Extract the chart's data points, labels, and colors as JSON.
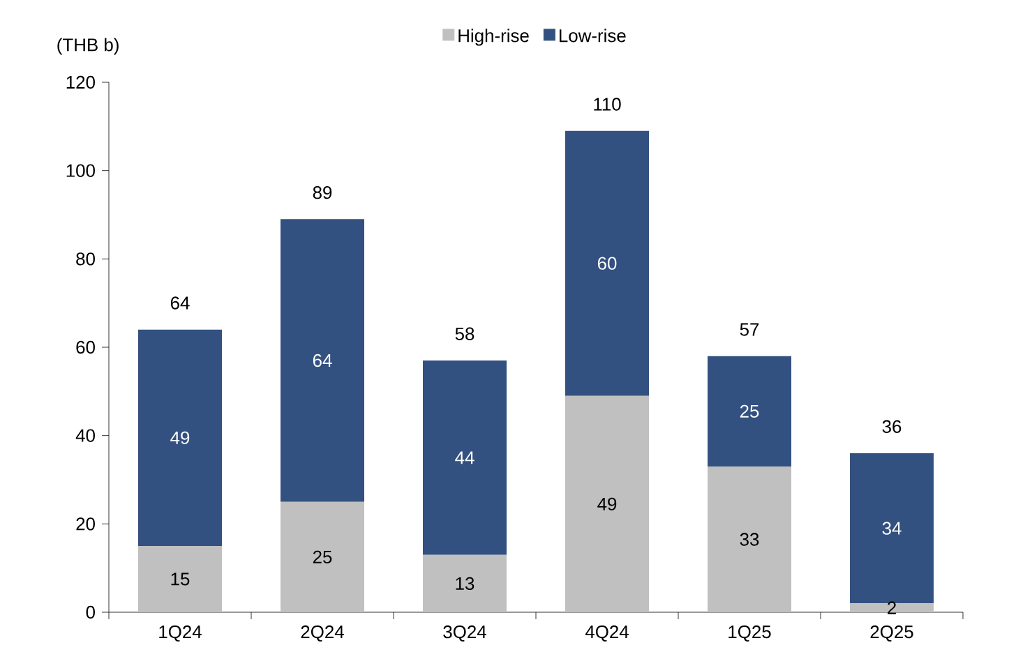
{
  "chart_data": {
    "type": "bar",
    "stacked": true,
    "ylabel": "(THB b)",
    "categories": [
      "1Q24",
      "2Q24",
      "3Q24",
      "4Q24",
      "1Q25",
      "2Q25"
    ],
    "series": [
      {
        "name": "High-rise",
        "color": "#c0c0c0",
        "values": [
          15,
          25,
          13,
          49,
          33,
          2
        ]
      },
      {
        "name": "Low-rise",
        "color": "#335180",
        "values": [
          49,
          64,
          44,
          60,
          25,
          34
        ]
      }
    ],
    "totals": [
      "64",
      "89",
      "58",
      "110",
      "57",
      "36"
    ],
    "data_labels": true,
    "ylim": [
      0,
      120
    ],
    "yticks": [
      0,
      20,
      40,
      60,
      80,
      100,
      120
    ],
    "grid": false,
    "legend": "top"
  }
}
